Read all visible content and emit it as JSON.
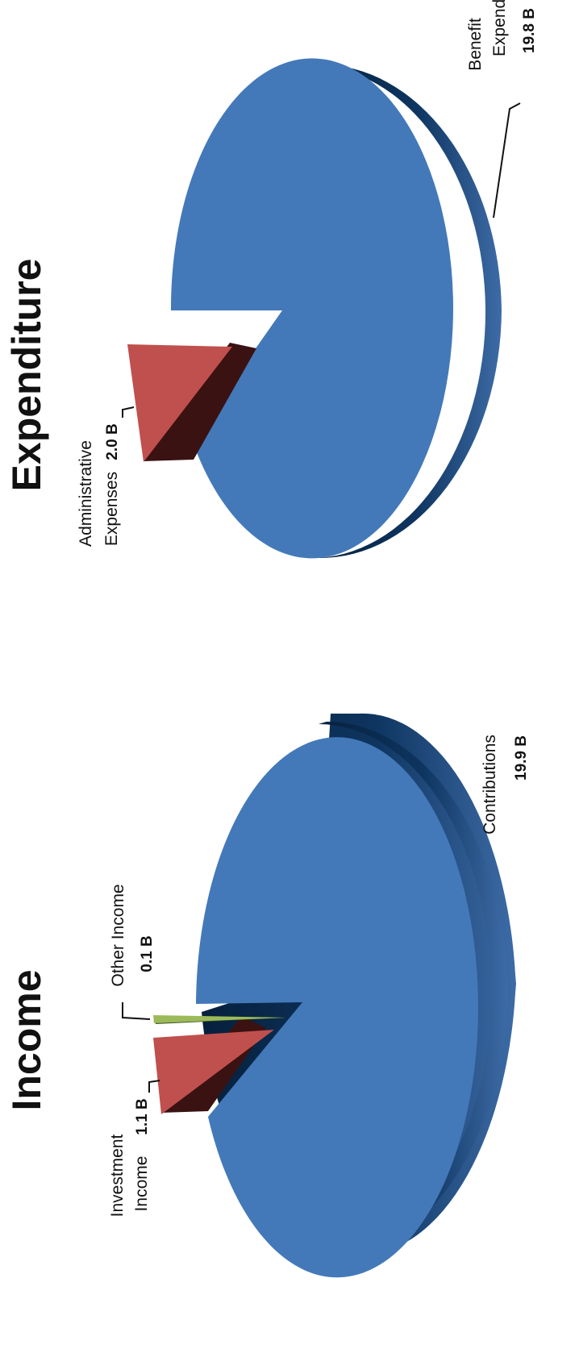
{
  "colors": {
    "blue_top": "#4379b9",
    "blue_side_dark": "#06203d",
    "blue_side_light": "#3d6ba6",
    "red_top": "#c0504d",
    "red_side": "#3a1212",
    "green_top": "#9bbb59",
    "green_side": "#3d4f1f",
    "text": "#111111"
  },
  "chart_data": [
    {
      "type": "pie",
      "title": "Income",
      "slices": [
        {
          "name": "Contributions",
          "value_text": "19.9 B",
          "value": 19.9,
          "color": "#4379b9",
          "side": "#06203d",
          "exploded": false
        },
        {
          "name": "Investment Income",
          "name_lines": [
            "Investment",
            "Income"
          ],
          "value_text": "1.1 B",
          "value": 1.1,
          "color": "#c0504d",
          "side": "#3a1212",
          "exploded": true
        },
        {
          "name": "Other Income",
          "value_text": "0.1 B",
          "value": 0.1,
          "color": "#9bbb59",
          "side": "#3d4f1f",
          "exploded": true
        }
      ]
    },
    {
      "type": "pie",
      "title": "Expenditure",
      "slices": [
        {
          "name": "Benefit Expenditur",
          "name_lines": [
            "Benefit",
            "Expenditur"
          ],
          "value_text": "19.8 B",
          "value": 19.8,
          "color": "#4379b9",
          "side": "#06203d",
          "exploded": false
        },
        {
          "name": "Administrative Expenses",
          "name_lines": [
            "Administrative",
            "Expenses"
          ],
          "value_text": "2.0 B",
          "value": 2.0,
          "color": "#c0504d",
          "side": "#3a1212",
          "exploded": true
        }
      ]
    }
  ]
}
